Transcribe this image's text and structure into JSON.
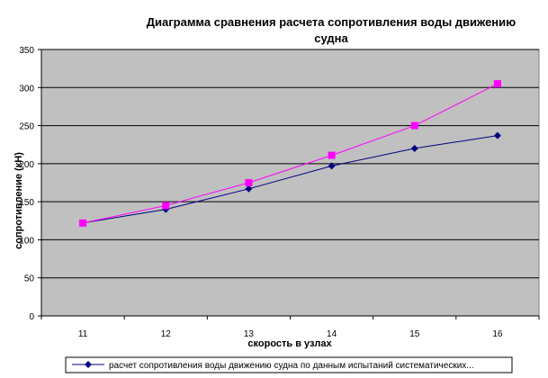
{
  "chart_data": {
    "type": "line",
    "title_lines": [
      "Диаграмма сравнения расчета сопротивления воды движению",
      "судна"
    ],
    "xlabel": "скорость в узлах",
    "ylabel": "сопротивление (кН)",
    "categories": [
      "11",
      "12",
      "13",
      "14",
      "15",
      "16"
    ],
    "ylim": [
      0,
      350
    ],
    "yticks": [
      "0",
      "50",
      "100",
      "150",
      "200",
      "250",
      "300",
      "350"
    ],
    "grid": true,
    "legend_position": "bottom",
    "series": [
      {
        "name": "расчет сопротивления воды движению судна по данным испытаний систематических...",
        "values": [
          122,
          140,
          167,
          197,
          220,
          237
        ],
        "color": "#000080",
        "marker": "diamond"
      },
      {
        "name": "",
        "values": [
          122,
          145,
          175,
          211,
          250,
          305
        ],
        "color": "#FF00FF",
        "marker": "square"
      }
    ],
    "colors": {
      "plot_background": "#C0C0C0",
      "gridline": "#000000"
    }
  }
}
